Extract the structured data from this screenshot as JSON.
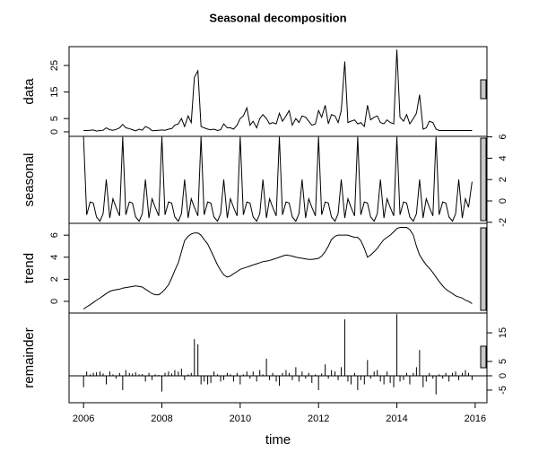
{
  "chart_data": {
    "type": "line",
    "title": "Seasonal decomposition",
    "x_label": "time",
    "x": [
      2006,
      2006.08,
      2006.17,
      2006.25,
      2006.33,
      2006.42,
      2006.5,
      2006.58,
      2006.67,
      2006.75,
      2006.83,
      2006.92,
      2007,
      2007.08,
      2007.17,
      2007.25,
      2007.33,
      2007.42,
      2007.5,
      2007.58,
      2007.67,
      2007.75,
      2007.83,
      2007.92,
      2008,
      2008.08,
      2008.17,
      2008.25,
      2008.33,
      2008.42,
      2008.5,
      2008.58,
      2008.67,
      2008.75,
      2008.83,
      2008.92,
      2009,
      2009.08,
      2009.17,
      2009.25,
      2009.33,
      2009.42,
      2009.5,
      2009.58,
      2009.67,
      2009.75,
      2009.83,
      2009.92,
      2010,
      2010.08,
      2010.17,
      2010.25,
      2010.33,
      2010.42,
      2010.5,
      2010.58,
      2010.67,
      2010.75,
      2010.83,
      2010.92,
      2011,
      2011.08,
      2011.17,
      2011.25,
      2011.33,
      2011.42,
      2011.5,
      2011.58,
      2011.67,
      2011.75,
      2011.83,
      2011.92,
      2012,
      2012.08,
      2012.17,
      2012.25,
      2012.33,
      2012.42,
      2012.5,
      2012.58,
      2012.67,
      2012.75,
      2012.83,
      2012.92,
      2013,
      2013.08,
      2013.17,
      2013.25,
      2013.33,
      2013.42,
      2013.5,
      2013.58,
      2013.67,
      2013.75,
      2013.83,
      2013.92,
      2014,
      2014.08,
      2014.17,
      2014.25,
      2014.33,
      2014.42,
      2014.5,
      2014.58,
      2014.67,
      2014.75,
      2014.83,
      2014.92,
      2015,
      2015.08,
      2015.17,
      2015.25,
      2015.33,
      2015.42,
      2015.5,
      2015.58,
      2015.67,
      2015.75,
      2015.83,
      2015.92
    ],
    "xlim": [
      2005.63,
      2016.3
    ],
    "xticks": [
      2006,
      2008,
      2010,
      2012,
      2014,
      2016
    ],
    "series": [
      {
        "name": "data",
        "color": "#000000",
        "style": "line",
        "axis_side": "left",
        "ylim": [
          -1.7,
          32.1
        ],
        "yticks": [
          0,
          5,
          15,
          25
        ],
        "values": [
          0.5,
          0.5,
          0.6,
          0.7,
          0.3,
          0.5,
          0.6,
          1.5,
          0.8,
          0.6,
          0.9,
          1.5,
          2.8,
          1.5,
          1.2,
          0.8,
          0.4,
          1.0,
          0.6,
          2.0,
          1.4,
          0.4,
          0.5,
          0.6,
          0.7,
          0.6,
          1.0,
          1.2,
          2.5,
          3.0,
          5.0,
          2.0,
          6.0,
          3.5,
          20.5,
          23,
          2.0,
          1.5,
          1.0,
          0.8,
          1.0,
          0.5,
          0.8,
          3.0,
          1.5,
          1.5,
          1.0,
          2.5,
          5.0,
          6.0,
          9.0,
          2.5,
          4.0,
          1.5,
          5.0,
          6.5,
          5.0,
          3.0,
          3.5,
          3.0,
          7.0,
          4.0,
          6.0,
          8.0,
          2.5,
          5.0,
          3.5,
          6.0,
          5.5,
          4.0,
          2.5,
          3.0,
          8.0,
          5.5,
          10.0,
          3.0,
          6.5,
          6.0,
          3.5,
          8.0,
          26.5,
          3.5,
          4.0,
          4.5,
          3.0,
          3.5,
          2.0,
          10.0,
          4.5,
          5.5,
          6.0,
          3.5,
          3.0,
          4.5,
          3.5,
          3.0,
          31.0,
          5.5,
          4.0,
          6.5,
          3.0,
          5.0,
          7.0,
          14.0,
          1.0,
          1.5,
          4.0,
          3.5,
          1.0,
          0.5,
          0.5,
          0.5,
          0.5,
          0.5,
          0.5,
          0.5,
          0.5,
          0.5,
          0.5,
          0.5
        ]
      },
      {
        "name": "seasonal",
        "color": "#000000",
        "style": "line",
        "axis_side": "right",
        "ylim": [
          -2.1,
          6.05
        ],
        "yticks": [
          -2,
          0,
          2,
          4,
          6
        ],
        "values": [
          6.0,
          -1.3,
          -0.1,
          -0.2,
          -1.5,
          -1.9,
          -1.2,
          2.0,
          -1.6,
          0.2,
          -0.6,
          -1.4,
          6.0,
          -1.3,
          -0.1,
          -0.2,
          -1.5,
          -1.9,
          -1.2,
          2.0,
          -1.6,
          0.2,
          -0.6,
          -1.4,
          6.0,
          -1.3,
          -0.1,
          -0.2,
          -1.5,
          -1.9,
          -1.2,
          2.0,
          -1.6,
          0.2,
          -0.6,
          -1.4,
          6.0,
          -1.3,
          -0.1,
          -0.2,
          -1.5,
          -1.9,
          -1.2,
          2.0,
          -1.6,
          0.2,
          -0.6,
          -1.4,
          6.0,
          -1.3,
          -0.1,
          -0.2,
          -1.5,
          -1.9,
          -1.2,
          2.0,
          -1.6,
          0.2,
          -0.6,
          -1.4,
          6.0,
          -1.3,
          -0.1,
          -0.2,
          -1.5,
          -1.9,
          -1.2,
          2.0,
          -1.6,
          0.2,
          -0.6,
          -1.4,
          6.0,
          -1.3,
          -0.1,
          -0.2,
          -1.5,
          -1.9,
          -1.2,
          2.0,
          -1.6,
          0.2,
          -0.6,
          -1.4,
          6.0,
          -1.3,
          -0.1,
          -0.2,
          -1.5,
          -1.9,
          -1.2,
          2.0,
          -1.6,
          0.2,
          -0.6,
          -1.4,
          6.0,
          -1.3,
          -0.1,
          -0.2,
          -1.5,
          -1.9,
          -1.2,
          2.0,
          -1.6,
          0.2,
          -0.6,
          -1.4,
          6.0,
          -1.3,
          -0.1,
          -0.2,
          -1.5,
          -1.9,
          -1.2,
          2.0,
          -1.6,
          0.2,
          -0.6,
          1.8
        ]
      },
      {
        "name": "trend",
        "color": "#000000",
        "style": "line",
        "axis_side": "left",
        "ylim": [
          -1.06,
          7.07
        ],
        "yticks": [
          0,
          2,
          4,
          6
        ],
        "values": [
          -0.7,
          -0.5,
          -0.3,
          -0.1,
          0.1,
          0.3,
          0.5,
          0.7,
          0.9,
          1.0,
          1.05,
          1.1,
          1.2,
          1.25,
          1.3,
          1.35,
          1.4,
          1.35,
          1.3,
          1.1,
          0.9,
          0.7,
          0.6,
          0.6,
          0.8,
          1.1,
          1.5,
          2.1,
          2.8,
          3.5,
          4.5,
          5.5,
          5.9,
          6.1,
          6.2,
          6.2,
          6.0,
          5.6,
          5.2,
          4.6,
          4.0,
          3.3,
          2.8,
          2.4,
          2.2,
          2.3,
          2.5,
          2.7,
          2.9,
          3.0,
          3.1,
          3.2,
          3.3,
          3.4,
          3.5,
          3.6,
          3.65,
          3.7,
          3.8,
          3.9,
          4.0,
          4.1,
          4.2,
          4.15,
          4.1,
          4.0,
          3.95,
          3.9,
          3.85,
          3.8,
          3.8,
          3.85,
          3.9,
          4.1,
          4.5,
          5.0,
          5.6,
          5.9,
          6.0,
          6.0,
          6.0,
          6.0,
          5.9,
          5.8,
          5.8,
          5.5,
          4.8,
          4.0,
          4.2,
          4.5,
          4.8,
          5.2,
          5.6,
          5.8,
          6.0,
          6.3,
          6.6,
          6.7,
          6.7,
          6.7,
          6.5,
          6.0,
          5.0,
          4.2,
          3.7,
          3.3,
          3.0,
          2.6,
          2.2,
          1.8,
          1.4,
          1.1,
          0.9,
          0.7,
          0.5,
          0.4,
          0.3,
          0.1,
          0.0,
          -0.2
        ]
      },
      {
        "name": "remainder",
        "color": "#000000",
        "style": "spikes",
        "axis_side": "right",
        "ylim": [
          -9.4,
          21.9
        ],
        "yticks": [
          -5,
          0,
          5,
          15
        ],
        "values": [
          -4,
          1.5,
          0.5,
          1,
          1.2,
          1.5,
          0.8,
          -3,
          1.5,
          0.5,
          -1,
          1,
          -5,
          2,
          1,
          0.8,
          1.2,
          0.5,
          0.6,
          -2,
          1,
          -1.5,
          0.5,
          0.3,
          -5.5,
          1,
          1.5,
          0.8,
          2,
          1.5,
          2.5,
          -1.5,
          0.5,
          1,
          12.8,
          11,
          -3,
          -2,
          -3,
          -2.5,
          1.5,
          0.5,
          -2,
          -1.5,
          1,
          0.5,
          -2,
          1,
          -3,
          0.5,
          1.5,
          -1,
          1.5,
          -2,
          2,
          0.5,
          6,
          -1.5,
          1,
          -2,
          -3.5,
          1,
          2,
          1,
          -1.5,
          3,
          -2,
          1.5,
          -1,
          1,
          -2.5,
          0.5,
          -5,
          0.8,
          4,
          -1,
          2,
          1.5,
          -1.5,
          3,
          19.7,
          -2,
          -3,
          1,
          -5,
          -1.5,
          -3,
          5.5,
          -1,
          1.5,
          2,
          -2,
          -3,
          1.5,
          -2.5,
          -4,
          21.5,
          -2,
          -1.5,
          1,
          -3,
          1,
          3,
          9,
          -4,
          -2,
          1,
          -1,
          -6.5,
          0.5,
          -1,
          1,
          -2,
          1,
          1.5,
          -1.5,
          1,
          2,
          1,
          -1.5
        ]
      }
    ]
  }
}
